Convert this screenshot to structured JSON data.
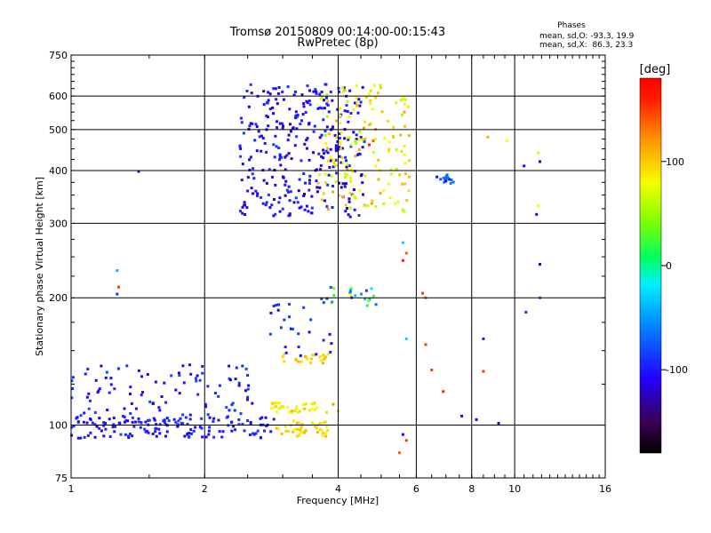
{
  "chart_data": {
    "type": "scatter",
    "title": "Tromsø 20150809 00:14:00-00:15:43",
    "subtitle": "RwPretec (8p)",
    "xlabel": "Frequency [MHz]",
    "ylabel": "Stationary phase Virtual Height [km]",
    "x_scale": "log",
    "y_scale": "log",
    "xlim": [
      1,
      16
    ],
    "ylim": [
      75,
      750
    ],
    "x_ticks": [
      1,
      2,
      4,
      6,
      8,
      10,
      16
    ],
    "x_tick_labels": [
      "1",
      "2",
      "4",
      "6",
      "8",
      "10",
      "16"
    ],
    "y_ticks": [
      75,
      100,
      200,
      300,
      400,
      500,
      600,
      750
    ],
    "y_tick_labels": [
      "75",
      "100",
      "200",
      "300",
      "400",
      "500",
      "600",
      "750"
    ],
    "x_grid": [
      2,
      4,
      6,
      8,
      10
    ],
    "y_grid": [
      100,
      200,
      300,
      400,
      500,
      600
    ],
    "grid": true,
    "stats": {
      "heading": "Phases",
      "line_o": "mean, sd,O: -93.3, 19.9",
      "line_x": "mean, sd,X:  86.3, 23.3"
    },
    "colorbar": {
      "label": "[deg]",
      "min": -180,
      "max": 180,
      "ticks": [
        100,
        0,
        -100
      ],
      "tick_labels": [
        "100",
        "0",
        "-100"
      ],
      "colormap": "rainbow"
    },
    "clusters": [
      {
        "name": "lower-layer-o",
        "x": [
          1.0,
          2.9
        ],
        "y": [
          93,
          105
        ],
        "phase": [
          -110,
          -85
        ],
        "n": 140
      },
      {
        "name": "lower-rising-o",
        "x": [
          1.0,
          2.6
        ],
        "y": [
          100,
          140
        ],
        "phase": [
          -115,
          -80
        ],
        "n": 110
      },
      {
        "name": "lower-layer-x",
        "x": [
          2.9,
          3.8
        ],
        "y": [
          94,
          103
        ],
        "phase": [
          80,
          110
        ],
        "n": 45
      },
      {
        "name": "band-110-x",
        "x": [
          2.8,
          3.8
        ],
        "y": [
          107,
          113
        ],
        "phase": [
          60,
          110
        ],
        "n": 35
      },
      {
        "name": "band-145-x",
        "x": [
          3.0,
          3.8
        ],
        "y": [
          140,
          147
        ],
        "phase": [
          80,
          110
        ],
        "n": 22
      },
      {
        "name": "trace-to-200",
        "x": [
          2.8,
          3.9
        ],
        "y": [
          145,
          200
        ],
        "phase": [
          -110,
          -80
        ],
        "n": 28
      },
      {
        "name": "f-region-o",
        "x": [
          2.4,
          4.6
        ],
        "y": [
          310,
          640
        ],
        "phase": [
          -125,
          -85
        ],
        "n": 320
      },
      {
        "name": "f-region-x",
        "x": [
          3.6,
          5.8
        ],
        "y": [
          320,
          640
        ],
        "phase": [
          50,
          120
        ],
        "n": 150
      },
      {
        "name": "f-cusp",
        "x": [
          6.6,
          7.3
        ],
        "y": [
          370,
          395
        ],
        "phase": [
          -110,
          -60
        ],
        "n": 16
      },
      {
        "name": "f-mid-200",
        "x": [
          3.8,
          5.0
        ],
        "y": [
          190,
          215
        ],
        "phase": [
          -110,
          90
        ],
        "n": 22
      }
    ],
    "points": [
      {
        "x": 1.42,
        "y": 398,
        "phase": -110
      },
      {
        "x": 1.27,
        "y": 232,
        "phase": -40
      },
      {
        "x": 1.28,
        "y": 212,
        "phase": 150
      },
      {
        "x": 1.27,
        "y": 204,
        "phase": -90
      },
      {
        "x": 5.6,
        "y": 270,
        "phase": -30
      },
      {
        "x": 5.7,
        "y": 255,
        "phase": 140
      },
      {
        "x": 5.6,
        "y": 245,
        "phase": 160
      },
      {
        "x": 5.7,
        "y": 160,
        "phase": -30
      },
      {
        "x": 5.6,
        "y": 95,
        "phase": -110
      },
      {
        "x": 5.7,
        "y": 92,
        "phase": 150
      },
      {
        "x": 5.5,
        "y": 86,
        "phase": 140
      },
      {
        "x": 6.2,
        "y": 205,
        "phase": 150
      },
      {
        "x": 6.3,
        "y": 200,
        "phase": 140
      },
      {
        "x": 6.3,
        "y": 155,
        "phase": 150
      },
      {
        "x": 6.5,
        "y": 135,
        "phase": 150
      },
      {
        "x": 6.9,
        "y": 120,
        "phase": 160
      },
      {
        "x": 7.6,
        "y": 105,
        "phase": -110
      },
      {
        "x": 8.2,
        "y": 103,
        "phase": -110
      },
      {
        "x": 8.5,
        "y": 160,
        "phase": -100
      },
      {
        "x": 8.5,
        "y": 134,
        "phase": 150
      },
      {
        "x": 9.2,
        "y": 101,
        "phase": -110
      },
      {
        "x": 8.7,
        "y": 480,
        "phase": 110
      },
      {
        "x": 9.6,
        "y": 470,
        "phase": 80
      },
      {
        "x": 10.5,
        "y": 410,
        "phase": -110
      },
      {
        "x": 11.3,
        "y": 440,
        "phase": 90
      },
      {
        "x": 11.4,
        "y": 420,
        "phase": -110
      },
      {
        "x": 11.3,
        "y": 330,
        "phase": 80
      },
      {
        "x": 11.2,
        "y": 315,
        "phase": -110
      },
      {
        "x": 11.4,
        "y": 240,
        "phase": -110
      },
      {
        "x": 11.4,
        "y": 200,
        "phase": -60
      },
      {
        "x": 10.6,
        "y": 185,
        "phase": -90
      },
      {
        "x": 4.7,
        "y": 460,
        "phase": 160
      },
      {
        "x": 4.8,
        "y": 470,
        "phase": 140
      },
      {
        "x": 3.9,
        "y": 112,
        "phase": 120
      },
      {
        "x": 4.0,
        "y": 108,
        "phase": 100
      }
    ]
  }
}
